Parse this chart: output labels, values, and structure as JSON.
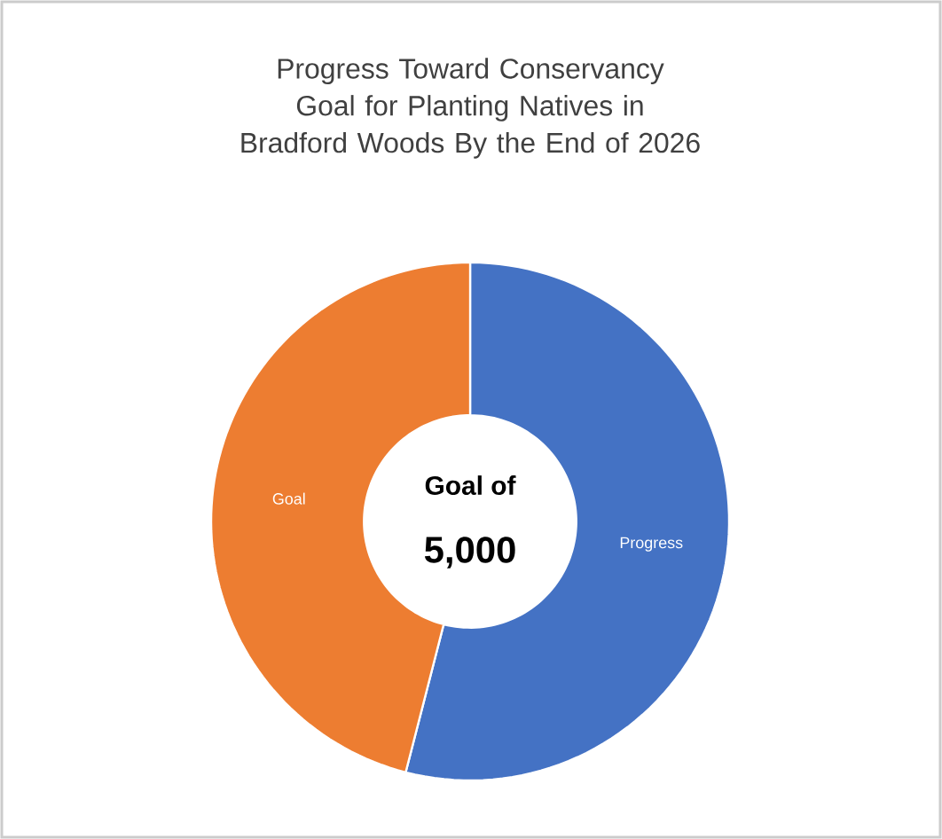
{
  "chart_data": {
    "type": "donut",
    "title": "Progress Toward Conservancy Goal for Planting Natives in Bradford Woods By the End of 2026",
    "categories": [
      "Progress",
      "Goal"
    ],
    "values": [
      54,
      46
    ],
    "colors": [
      "#4472c4",
      "#ed7d31"
    ],
    "annotations": [
      "Goal of",
      "5,000"
    ]
  }
}
